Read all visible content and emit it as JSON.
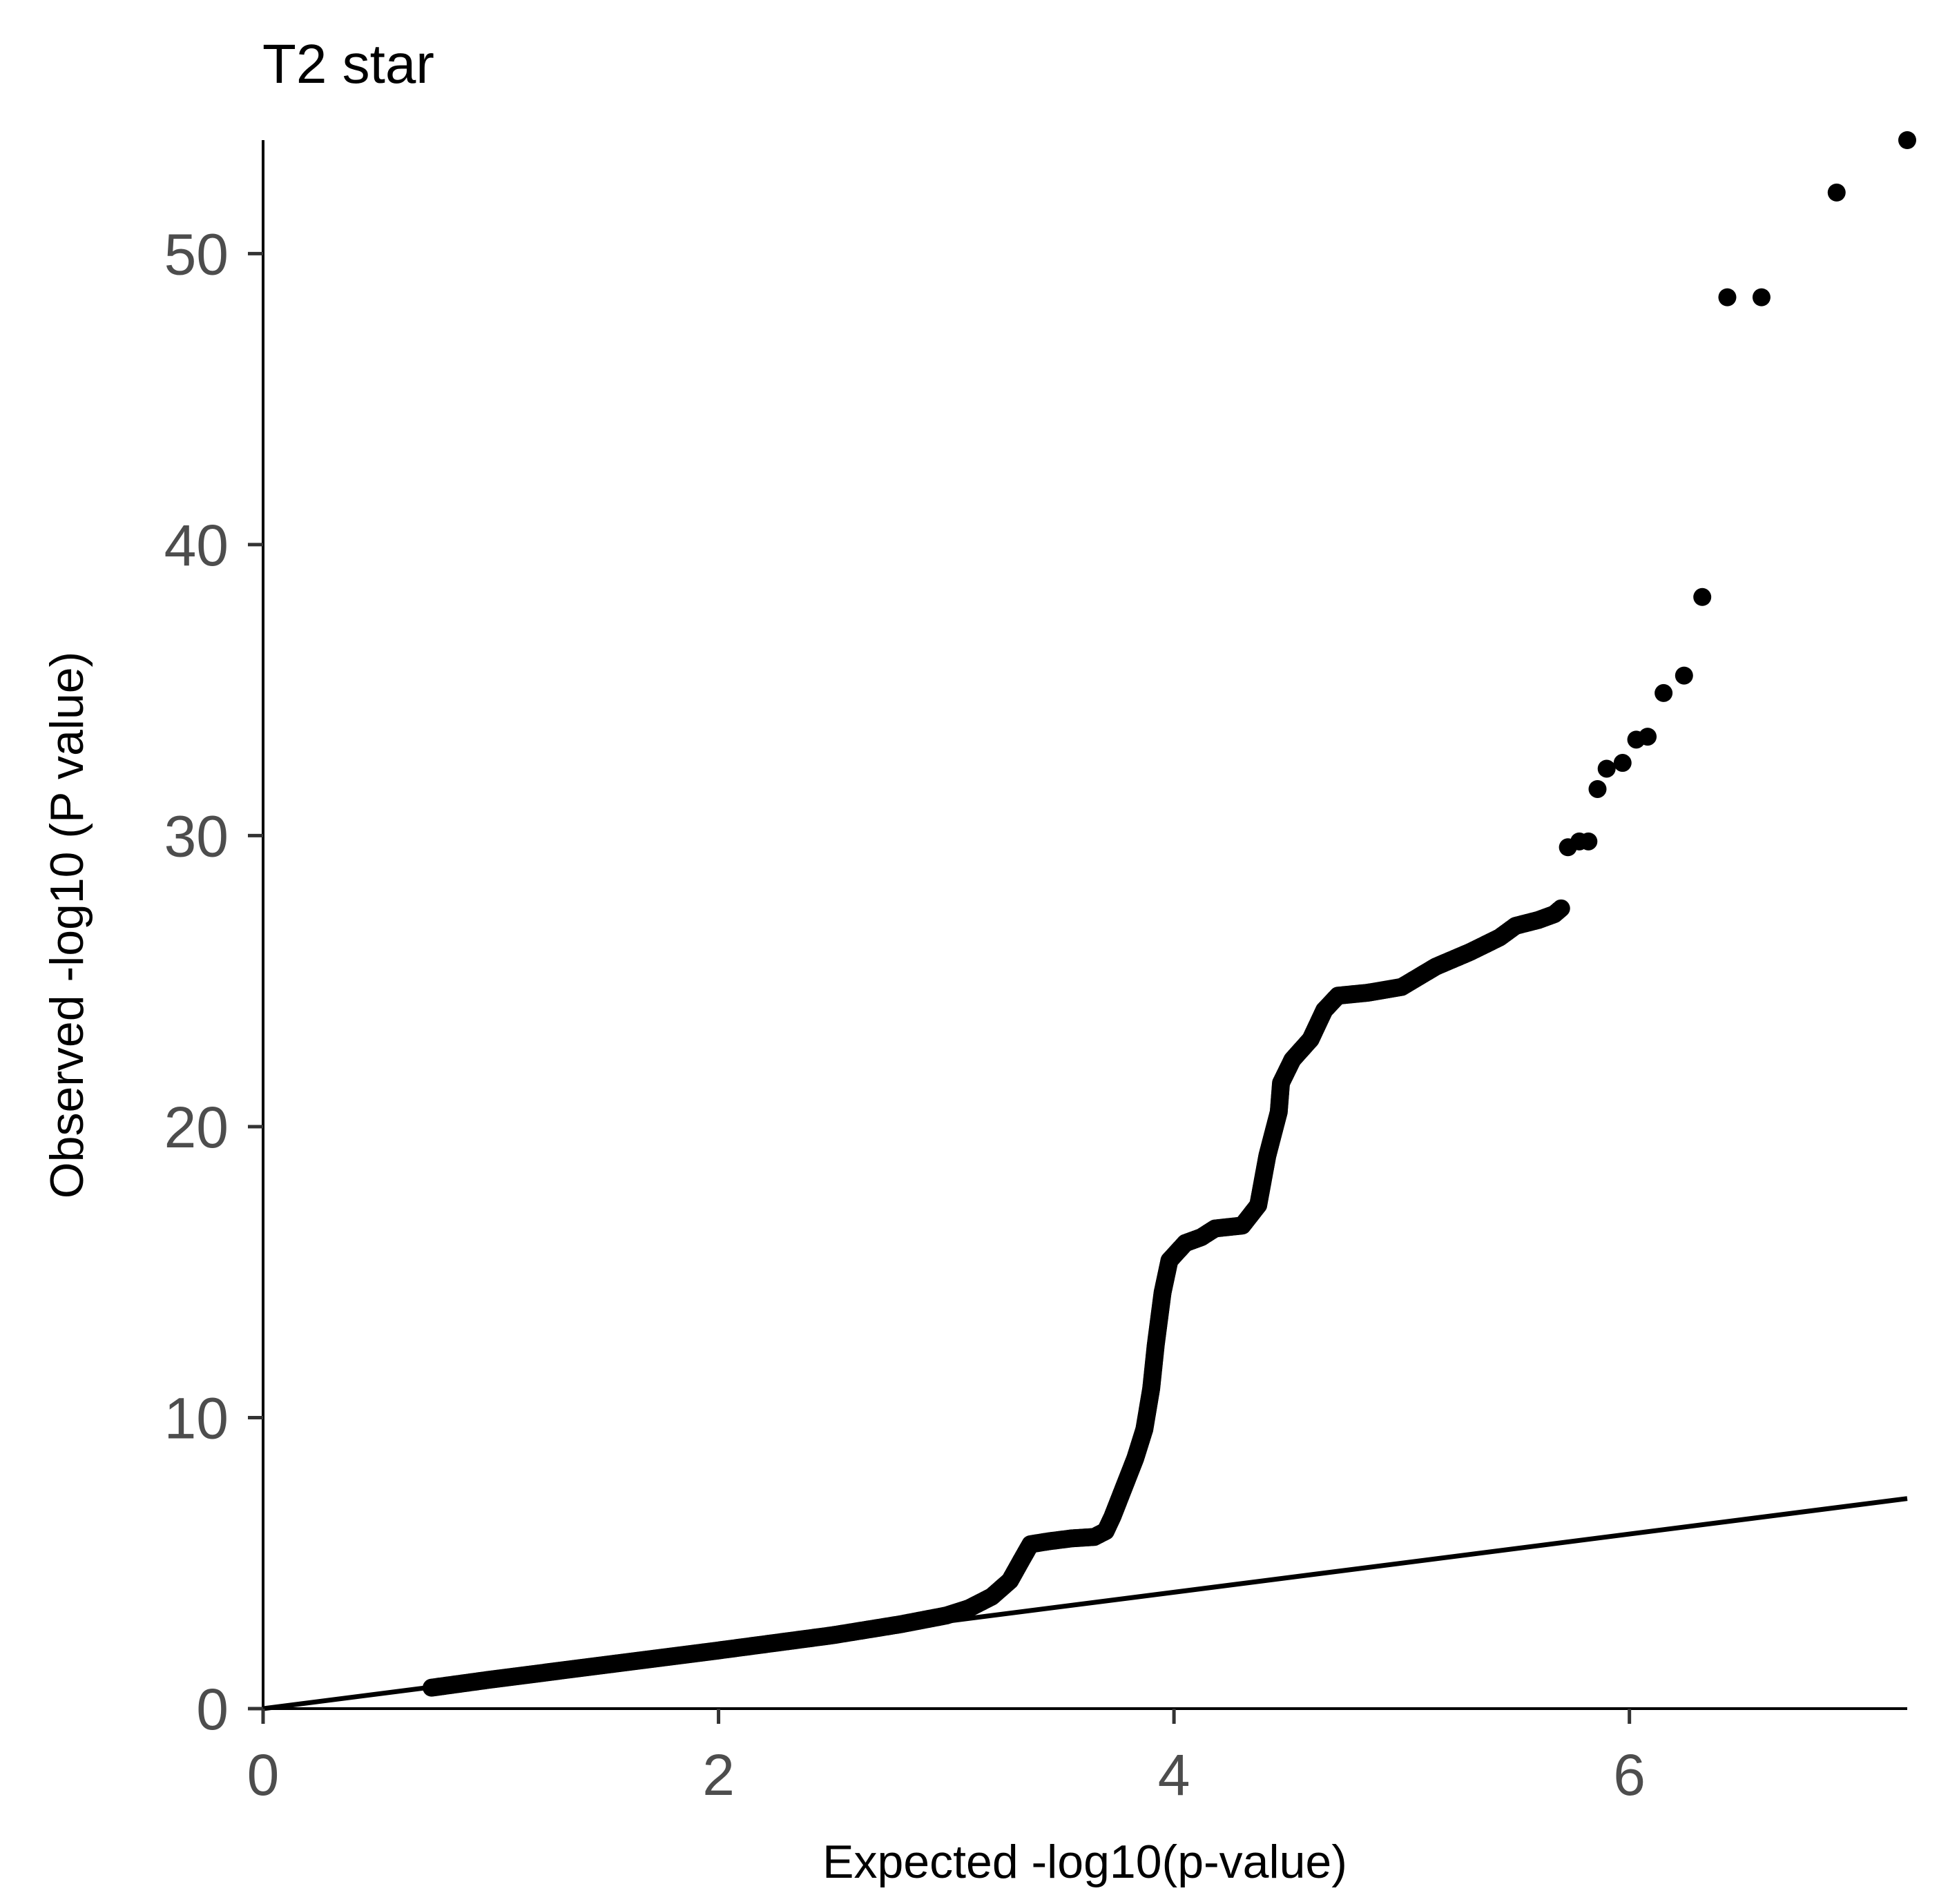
{
  "chart_data": {
    "type": "scatter",
    "title": "T2 star",
    "xlabel": "Expected -log10(p-value)",
    "ylabel": "Observed -log10 (P value)",
    "xlim": [
      0,
      7.22
    ],
    "ylim": [
      0,
      53.9
    ],
    "x_ticks": [
      0,
      2,
      4,
      6
    ],
    "y_ticks": [
      0,
      10,
      20,
      30,
      40,
      50
    ],
    "grid": false,
    "legend": "none",
    "point_color": "#000000",
    "reference_line": {
      "slope": 1,
      "intercept": 0,
      "color": "#000000"
    },
    "curve_points": [
      [
        0.74,
        0.72
      ],
      [
        1.0,
        1.0
      ],
      [
        1.5,
        1.5
      ],
      [
        2.0,
        2.0
      ],
      [
        2.5,
        2.52
      ],
      [
        2.8,
        2.9
      ],
      [
        3.0,
        3.2
      ],
      [
        3.1,
        3.45
      ],
      [
        3.2,
        3.85
      ],
      [
        3.28,
        4.4
      ],
      [
        3.33,
        5.1
      ],
      [
        3.37,
        5.65
      ],
      [
        3.45,
        5.75
      ],
      [
        3.55,
        5.85
      ],
      [
        3.65,
        5.9
      ],
      [
        3.7,
        6.1
      ],
      [
        3.73,
        6.6
      ],
      [
        3.78,
        7.6
      ],
      [
        3.83,
        8.6
      ],
      [
        3.87,
        9.6
      ],
      [
        3.9,
        11.0
      ],
      [
        3.92,
        12.5
      ],
      [
        3.95,
        14.3
      ],
      [
        3.98,
        15.4
      ],
      [
        4.05,
        16.0
      ],
      [
        4.12,
        16.2
      ],
      [
        4.18,
        16.5
      ],
      [
        4.3,
        16.6
      ],
      [
        4.37,
        17.3
      ],
      [
        4.41,
        19.0
      ],
      [
        4.46,
        20.5
      ],
      [
        4.47,
        21.5
      ],
      [
        4.52,
        22.3
      ],
      [
        4.6,
        23.0
      ],
      [
        4.66,
        24.0
      ],
      [
        4.72,
        24.5
      ],
      [
        4.85,
        24.6
      ],
      [
        5.0,
        24.8
      ],
      [
        5.15,
        25.5
      ],
      [
        5.3,
        26.0
      ],
      [
        5.43,
        26.5
      ],
      [
        5.5,
        26.9
      ],
      [
        5.6,
        27.1
      ],
      [
        5.67,
        27.3
      ],
      [
        5.7,
        27.5
      ]
    ],
    "outlier_points": [
      [
        5.73,
        29.6
      ],
      [
        5.78,
        29.8
      ],
      [
        5.82,
        29.8
      ],
      [
        5.86,
        31.6
      ],
      [
        5.9,
        32.3
      ],
      [
        5.97,
        32.5
      ],
      [
        6.03,
        33.3
      ],
      [
        6.08,
        33.4
      ],
      [
        6.15,
        34.9
      ],
      [
        6.24,
        35.5
      ],
      [
        6.32,
        38.2
      ],
      [
        6.43,
        48.5
      ],
      [
        6.58,
        48.5
      ],
      [
        6.91,
        52.1
      ],
      [
        7.22,
        53.9
      ]
    ]
  }
}
